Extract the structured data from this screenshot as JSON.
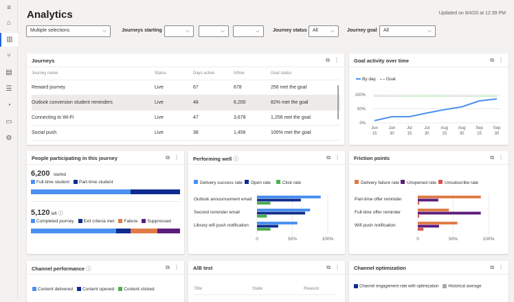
{
  "header": {
    "title": "Analytics",
    "updated": "Updated on 8/4/20 at 12:39 PM"
  },
  "sidebar": [
    "hamburger-icon",
    "home-icon",
    "analytics-icon",
    "branch-icon",
    "document-icon",
    "list-icon",
    "segment-icon",
    "message-icon",
    "settings-icon"
  ],
  "filters": {
    "journeys": "Multiple selections",
    "starting_label": "Journeys starting",
    "start1": "",
    "start2": "",
    "start3": "",
    "status_label": "Journey status",
    "status": "All",
    "goal_label": "Journey goal",
    "goal": "All"
  },
  "journeys": {
    "title": "Journeys",
    "columns": [
      "Journey name",
      "Status",
      "Days active",
      "Inflow",
      "Goal status"
    ],
    "rows": [
      [
        "Reward journey",
        "Live",
        "67",
        "678",
        "256 met the goal"
      ],
      [
        "Outlook conversion student reminders",
        "Live",
        "48",
        "6,200",
        "82% met the goal"
      ],
      [
        "Connecting to Wi-Fi",
        "Live",
        "47",
        "3,678",
        "1,256 met the goal"
      ],
      [
        "Social push",
        "Live",
        "38",
        "1,456",
        "105% met the goal"
      ]
    ]
  },
  "colors": {
    "blue": "#4a90f0",
    "navy": "#0f2c8f",
    "green": "#4caf50",
    "orange": "#e07b47",
    "purple": "#5c1c7c",
    "red": "#d9534f",
    "gray": "#a8a8a8"
  },
  "chart_data": [
    {
      "type": "line",
      "title": "Goal activity over time",
      "series": [
        {
          "name": "By day",
          "values": [
            8,
            22,
            22,
            35,
            47,
            57,
            78,
            85
          ]
        },
        {
          "name": "Goal",
          "values": [
            95,
            95,
            95,
            95,
            95,
            95,
            95,
            95
          ]
        }
      ],
      "categories": [
        "Jun 15",
        "Jun 30",
        "Jul 15",
        "Jul 30",
        "Aug 15",
        "Aug 30",
        "Sep 15",
        "Sep 30"
      ],
      "yticks": [
        "0%",
        "50%",
        "100%"
      ],
      "ylim": [
        0,
        100
      ]
    },
    {
      "type": "bar",
      "title": "Performing well",
      "categories": [
        "Outlook announcement email",
        "Second reminder email",
        "Library wifi push notification"
      ],
      "series": [
        {
          "name": "Delivery success rate",
          "values": [
            90,
            75,
            57
          ]
        },
        {
          "name": "Open rate",
          "values": [
            62,
            68,
            30
          ]
        },
        {
          "name": "Click rate",
          "values": [
            19,
            14,
            19
          ]
        }
      ],
      "xticks": [
        "0",
        "50%",
        "100%"
      ],
      "xlim": [
        0,
        100
      ]
    },
    {
      "type": "bar",
      "title": "Friction points",
      "categories": [
        "Part-time offer reminder",
        "Full-time offer reminder",
        "Wifi push notification"
      ],
      "series": [
        {
          "name": "Delivery failure rate",
          "values": [
            89,
            44,
            56
          ]
        },
        {
          "name": "Unopened rate",
          "values": [
            29,
            89,
            30
          ]
        },
        {
          "name": "Unsubscribe rate",
          "values": [
            2,
            2,
            8
          ]
        }
      ],
      "xticks": [
        "0",
        "50%",
        "100%"
      ],
      "xlim": [
        0,
        100
      ]
    }
  ],
  "people": {
    "title": "People participating in this journey",
    "started": "6,200",
    "started_label": "started",
    "seg1": [
      {
        "name": "Full-time student",
        "pct": 67
      },
      {
        "name": "Part-time student",
        "pct": 33
      }
    ],
    "left": "5,120",
    "left_label": "left",
    "seg2": [
      {
        "name": "Completed journey",
        "pct": 57
      },
      {
        "name": "Exit criteria met",
        "pct": 10
      },
      {
        "name": "Failure",
        "pct": 18
      },
      {
        "name": "Suppressed",
        "pct": 15
      }
    ]
  },
  "channel_perf": {
    "title": "Channel performance",
    "legend": [
      "Content delivered",
      "Content opened",
      "Content clicked"
    ]
  },
  "ab": {
    "title": "A/B test",
    "columns": [
      "Title",
      "State",
      "Reason"
    ]
  },
  "channel_opt": {
    "title": "Channel optimization",
    "legend": [
      "Channel engagement rate with optimization",
      "Historical average"
    ]
  }
}
